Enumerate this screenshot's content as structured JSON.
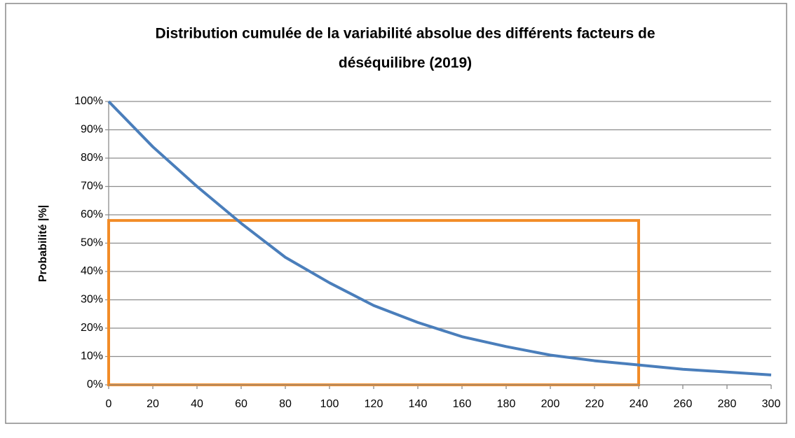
{
  "chart_data": {
    "type": "line",
    "title": [
      "Distribution cumulée de la variabilité absolue des différents facteurs de",
      "déséquilibre (2019)"
    ],
    "y_label": "Probabilité  |%|",
    "x": [
      0,
      20,
      40,
      60,
      80,
      100,
      120,
      140,
      160,
      180,
      200,
      220,
      240,
      260,
      280,
      300
    ],
    "series": [
      {
        "name": "Probabilité",
        "color": "#4a7ebb",
        "values": [
          100,
          84,
          70,
          57,
          45,
          36,
          28,
          22,
          17,
          13.5,
          10.5,
          8.5,
          7,
          5.5,
          4.5,
          3.5
        ]
      }
    ],
    "xlim": [
      0,
      300
    ],
    "xticks": [
      0,
      20,
      40,
      60,
      80,
      100,
      120,
      140,
      160,
      180,
      200,
      220,
      240,
      260,
      280,
      300
    ],
    "ylim": [
      0,
      100
    ],
    "yticks": [
      {
        "value": 0,
        "label": "0%"
      },
      {
        "value": 10,
        "label": "10%"
      },
      {
        "value": 20,
        "label": "20%"
      },
      {
        "value": 30,
        "label": "30%"
      },
      {
        "value": 40,
        "label": "40%"
      },
      {
        "value": 50,
        "label": "50%"
      },
      {
        "value": 60,
        "label": "60%"
      },
      {
        "value": 70,
        "label": "70%"
      },
      {
        "value": 80,
        "label": "80%"
      },
      {
        "value": 90,
        "label": "90%"
      },
      {
        "value": 100,
        "label": "100%"
      }
    ],
    "grid": true,
    "highlight_box": {
      "x": [
        0,
        240
      ],
      "y": [
        0,
        58
      ],
      "color": "#f28c28"
    }
  }
}
